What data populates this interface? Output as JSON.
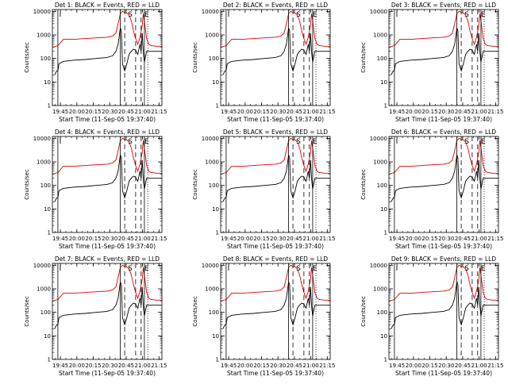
{
  "figure": {
    "type": "multi-panel light curves",
    "panel_titles": [
      "Det  1: BLACK = Events, RED = LLD",
      "Det  2: BLACK = Events, RED = LLD",
      "Det  3: BLACK = Events, RED = LLD",
      "Det  4: BLACK = Events, RED = LLD",
      "Det  5: BLACK = Events, RED = LLD",
      "Det  6: BLACK = Events, RED = LLD",
      "Det  7: BLACK = Events, RED = LLD",
      "Det  8: BLACK = Events, RED = LLD",
      "Det  9: BLACK = Events, RED = LLD"
    ],
    "xlabel": "Start Time (11-Sep-05 19:37:40)",
    "ylabel": "Counts/sec",
    "colors": {
      "events": "#000000",
      "lld": "#dd0000",
      "axes": "#000000"
    }
  },
  "chart_data": {
    "type": "line",
    "yscale": "log",
    "ylim": [
      1,
      12000
    ],
    "yticks": [
      1,
      10,
      100,
      1000,
      10000
    ],
    "ytick_labels": [
      "1",
      "10",
      "100",
      "1000",
      "10000"
    ],
    "xlim_minutes": [
      0,
      100
    ],
    "xticks_minutes": [
      7.33,
      22.33,
      37.33,
      52.33,
      67.33,
      82.33,
      97.33
    ],
    "xtick_labels": [
      "19:45",
      "20:00",
      "20:15",
      "20:30",
      "20:45",
      "21:00",
      "21:15"
    ],
    "marker_labels": [
      "I",
      "S",
      "E"
    ],
    "vertical_lines": [
      {
        "x": 5,
        "style": "solid"
      },
      {
        "x": 62,
        "style": "solid"
      },
      {
        "x": 66,
        "style": "dashed"
      },
      {
        "x": 76,
        "style": "dashed"
      },
      {
        "x": 81,
        "style": "dashed"
      },
      {
        "x": 84,
        "style": "solid"
      },
      {
        "x": 87,
        "style": "dotted"
      }
    ],
    "series": [
      {
        "name": "Events (BLACK)",
        "color": "#000000",
        "x": [
          2,
          4,
          5,
          6,
          10,
          20,
          30,
          40,
          50,
          55,
          58,
          60,
          61,
          62,
          63,
          64,
          66,
          68,
          70,
          72,
          74,
          76,
          78,
          80,
          81,
          82,
          83,
          84,
          86,
          90,
          95,
          100
        ],
        "y": [
          20,
          30,
          30,
          60,
          75,
          85,
          90,
          100,
          110,
          130,
          200,
          400,
          900,
          2000,
          1500,
          60,
          30,
          60,
          150,
          200,
          250,
          220,
          150,
          400,
          200,
          1200,
          200,
          70,
          200,
          200,
          200,
          200
        ]
      },
      {
        "name": "LLD (RED)",
        "color": "#dd0000",
        "x": [
          0,
          5,
          10,
          20,
          30,
          40,
          50,
          55,
          58,
          60,
          62,
          64,
          66,
          68,
          70,
          72,
          74,
          76,
          78,
          80,
          82,
          83,
          84,
          86,
          88,
          90,
          95,
          100
        ],
        "y": [
          300,
          350,
          650,
          650,
          700,
          750,
          800,
          900,
          1200,
          3000,
          8000,
          10000,
          9000,
          8500,
          7000,
          4000,
          1500,
          700,
          400,
          800,
          2500,
          8000,
          4000,
          700,
          400,
          350,
          330,
          330
        ]
      }
    ]
  }
}
